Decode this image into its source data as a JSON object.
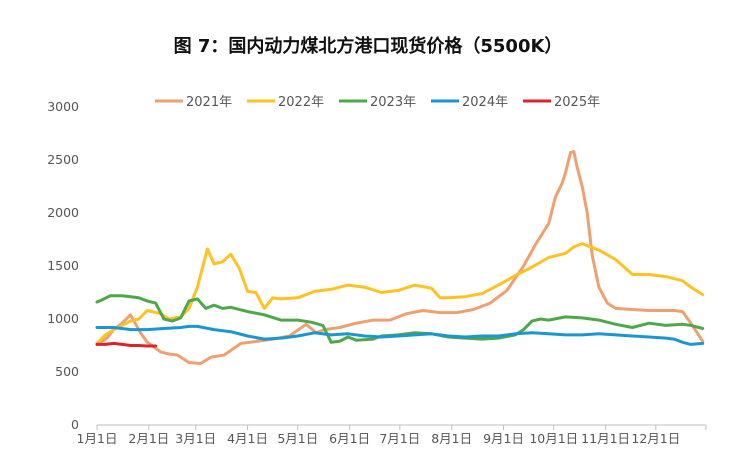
{
  "chart_data": {
    "type": "line",
    "title": "图 7：国内动力煤北方港口现货价格（5500K）",
    "xlabel": "",
    "ylabel": "",
    "ylim": [
      0,
      3000
    ],
    "yticks": [
      "0",
      "500",
      "1000",
      "1500",
      "2000",
      "2500",
      "3000"
    ],
    "xticks": [
      "1月1日",
      "2月1日",
      "3月1日",
      "4月1日",
      "5月1日",
      "6月1日",
      "7月1日",
      "8月1日",
      "9月1日",
      "10月1日",
      "11月1日",
      "12月1日"
    ],
    "grid": false,
    "legend_position": "top-center",
    "series": [
      {
        "name": "2021年",
        "color": "#f0a070",
        "x": [
          0,
          6,
          10,
          15,
          20,
          26,
          30,
          33,
          38,
          43,
          48,
          55,
          62,
          68,
          76,
          86,
          96,
          105,
          115,
          125,
          131,
          136,
          145,
          155,
          165,
          175,
          185,
          195,
          205,
          215,
          225,
          235,
          245,
          255,
          262,
          266,
          270,
          274,
          278,
          280,
          283,
          285,
          287,
          290,
          293,
          296,
          300,
          305,
          310,
          320,
          330,
          340,
          345,
          350,
          355,
          362
        ],
        "y": [
          760,
          820,
          900,
          960,
          1040,
          870,
          780,
          750,
          690,
          670,
          660,
          590,
          580,
          640,
          660,
          770,
          790,
          810,
          840,
          950,
          870,
          900,
          920,
          960,
          990,
          990,
          1050,
          1080,
          1060,
          1060,
          1090,
          1150,
          1270,
          1500,
          1700,
          1800,
          1900,
          2150,
          2280,
          2380,
          2570,
          2580,
          2430,
          2250,
          2000,
          1600,
          1300,
          1150,
          1100,
          1090,
          1080,
          1080,
          1080,
          1070,
          960,
          790
        ]
      },
      {
        "name": "2022年",
        "color": "#ffc222",
        "x": [
          0,
          5,
          10,
          15,
          20,
          25,
          30,
          38,
          43,
          50,
          55,
          60,
          63,
          66,
          70,
          75,
          80,
          85,
          90,
          95,
          100,
          105,
          110,
          120,
          130,
          140,
          150,
          160,
          170,
          180,
          190,
          200,
          205,
          210,
          220,
          230,
          240,
          250,
          260,
          270,
          280,
          285,
          290,
          300,
          310,
          320,
          330,
          340,
          350,
          355,
          362
        ],
        "y": [
          770,
          850,
          900,
          940,
          980,
          1000,
          1080,
          1050,
          1000,
          1020,
          1100,
          1300,
          1480,
          1660,
          1520,
          1540,
          1610,
          1480,
          1260,
          1250,
          1100,
          1200,
          1190,
          1200,
          1260,
          1280,
          1320,
          1300,
          1250,
          1270,
          1320,
          1290,
          1200,
          1200,
          1210,
          1240,
          1320,
          1410,
          1490,
          1580,
          1620,
          1680,
          1710,
          1650,
          1560,
          1420,
          1420,
          1400,
          1360,
          1300,
          1230
        ]
      },
      {
        "name": "2023年",
        "color": "#4ea848",
        "x": [
          0,
          3,
          8,
          15,
          25,
          30,
          35,
          40,
          45,
          50,
          55,
          60,
          65,
          70,
          75,
          80,
          90,
          100,
          110,
          120,
          128,
          135,
          140,
          145,
          150,
          155,
          165,
          170,
          180,
          190,
          200,
          210,
          220,
          230,
          240,
          250,
          255,
          260,
          265,
          270,
          280,
          290,
          300,
          310,
          320,
          330,
          340,
          350,
          355,
          362
        ],
        "y": [
          1160,
          1180,
          1220,
          1220,
          1200,
          1170,
          1150,
          1000,
          980,
          1010,
          1170,
          1190,
          1100,
          1130,
          1100,
          1110,
          1070,
          1040,
          990,
          990,
          970,
          940,
          780,
          790,
          830,
          800,
          810,
          840,
          850,
          870,
          860,
          830,
          820,
          810,
          820,
          850,
          900,
          980,
          1000,
          990,
          1020,
          1010,
          990,
          950,
          920,
          960,
          940,
          950,
          940,
          910
        ]
      },
      {
        "name": "2024年",
        "color": "#1a96d2",
        "x": [
          0,
          10,
          20,
          30,
          40,
          50,
          55,
          60,
          70,
          80,
          90,
          100,
          110,
          120,
          130,
          140,
          150,
          160,
          170,
          180,
          190,
          200,
          210,
          220,
          230,
          240,
          250,
          260,
          270,
          280,
          290,
          300,
          310,
          320,
          330,
          340,
          345,
          350,
          355,
          362
        ],
        "y": [
          920,
          920,
          900,
          900,
          910,
          920,
          930,
          930,
          900,
          880,
          840,
          810,
          820,
          840,
          870,
          850,
          860,
          840,
          830,
          840,
          850,
          860,
          840,
          830,
          840,
          840,
          860,
          870,
          860,
          850,
          850,
          860,
          850,
          840,
          830,
          820,
          810,
          780,
          760,
          770
        ]
      },
      {
        "name": "2025年",
        "color": "#e0202a",
        "x": [
          0,
          5,
          10,
          15,
          20,
          25,
          30,
          35
        ],
        "y": [
          760,
          760,
          770,
          760,
          750,
          750,
          745,
          745
        ]
      }
    ]
  }
}
